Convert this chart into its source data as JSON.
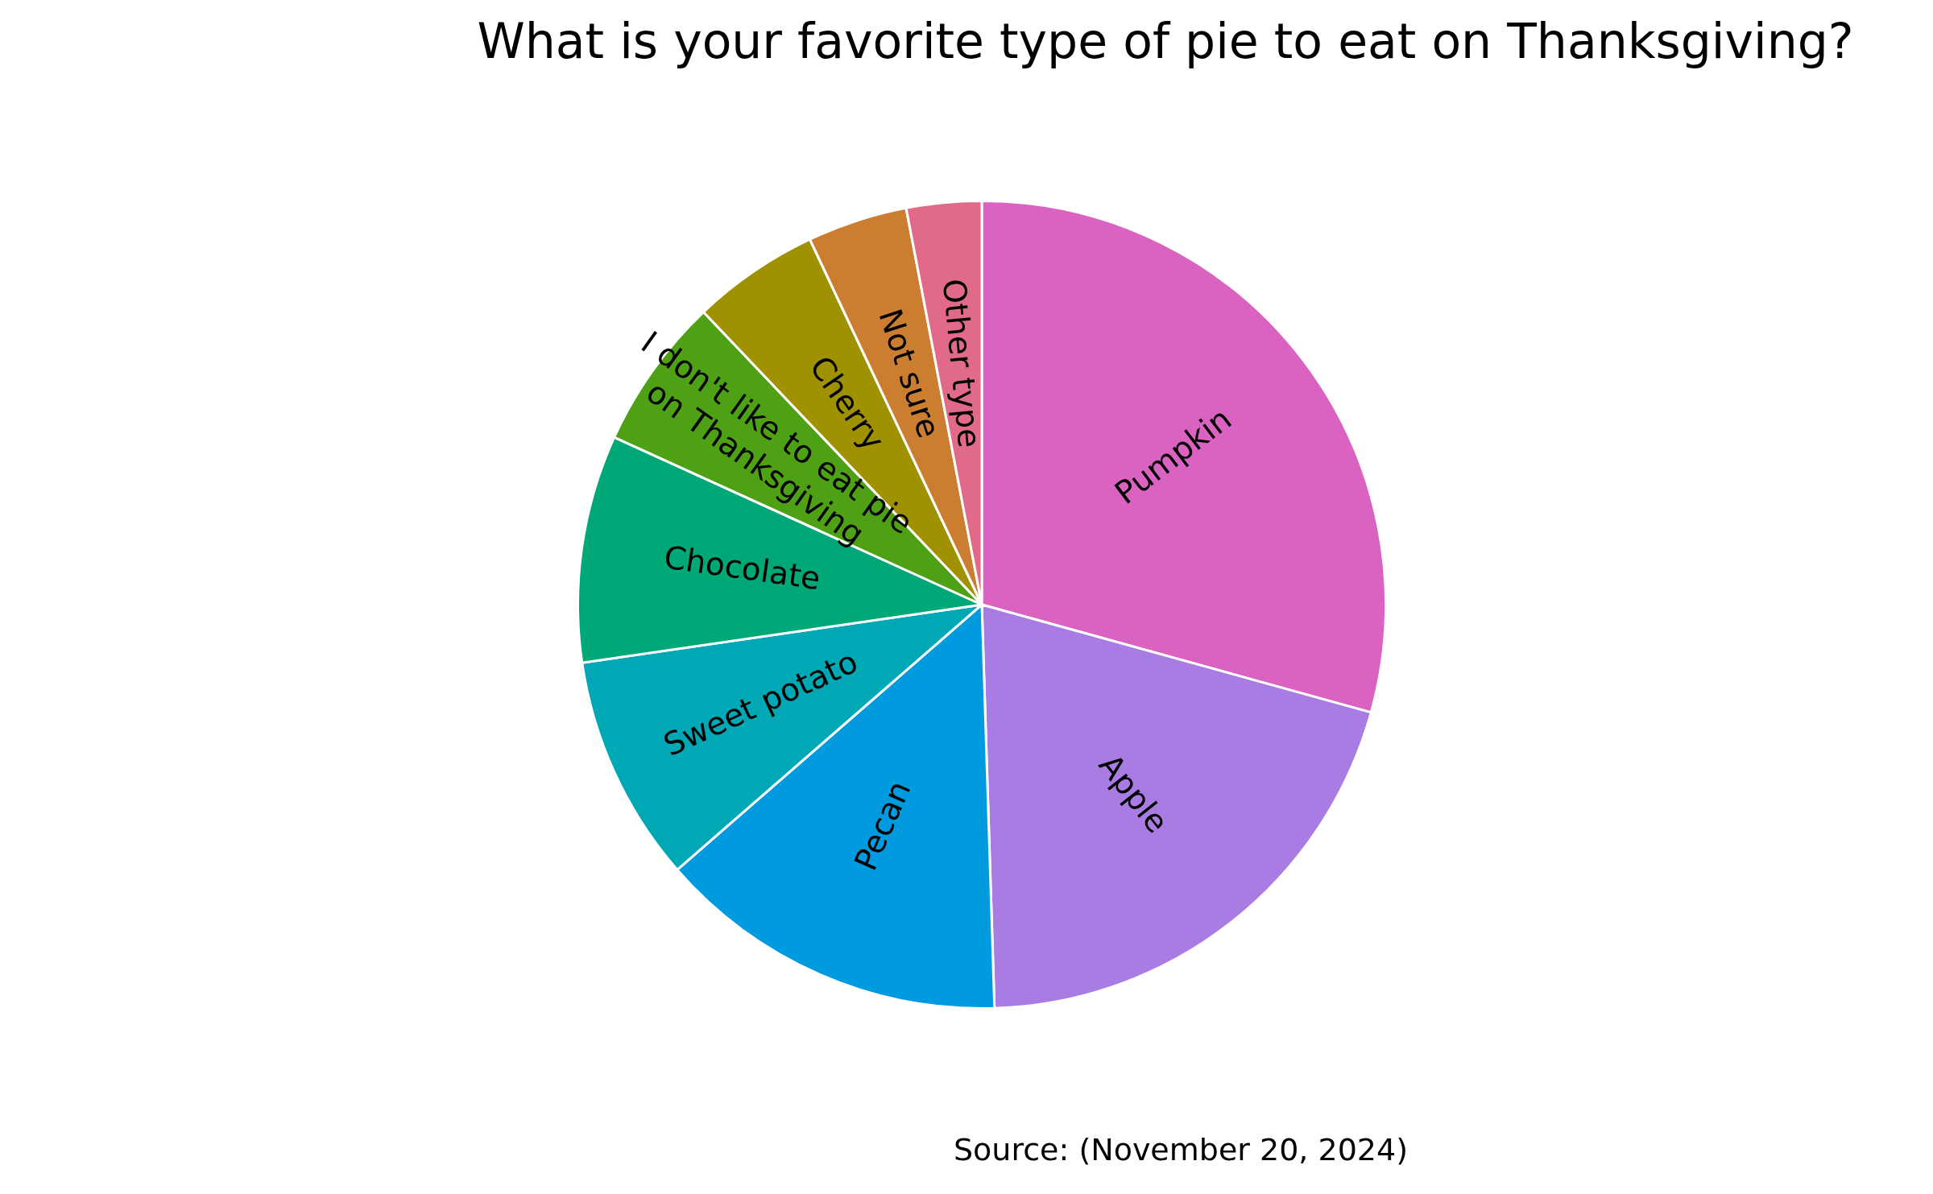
{
  "chart_data": {
    "type": "pie",
    "title": "What is your favorite type of pie to eat on Thanksgiving?",
    "categories": [
      "Pumpkin",
      "Apple",
      "Pecan",
      "Sweet potato",
      "Chocolate",
      "I don't like to eat pie\non Thanksgiving",
      "Cherry",
      "Not sure",
      "Other type"
    ],
    "values": [
      29.3,
      20.2,
      14.1,
      9.1,
      9.1,
      6.1,
      5.1,
      4.0,
      3.0
    ],
    "colors": [
      "#da62c0",
      "#a87ce3",
      "#009ade",
      "#00a8b5",
      "#00a877",
      "#4ea115",
      "#9f9100",
      "#cc7e30",
      "#e06a87"
    ],
    "annotations": [
      "Source: (November 20, 2024)"
    ]
  }
}
